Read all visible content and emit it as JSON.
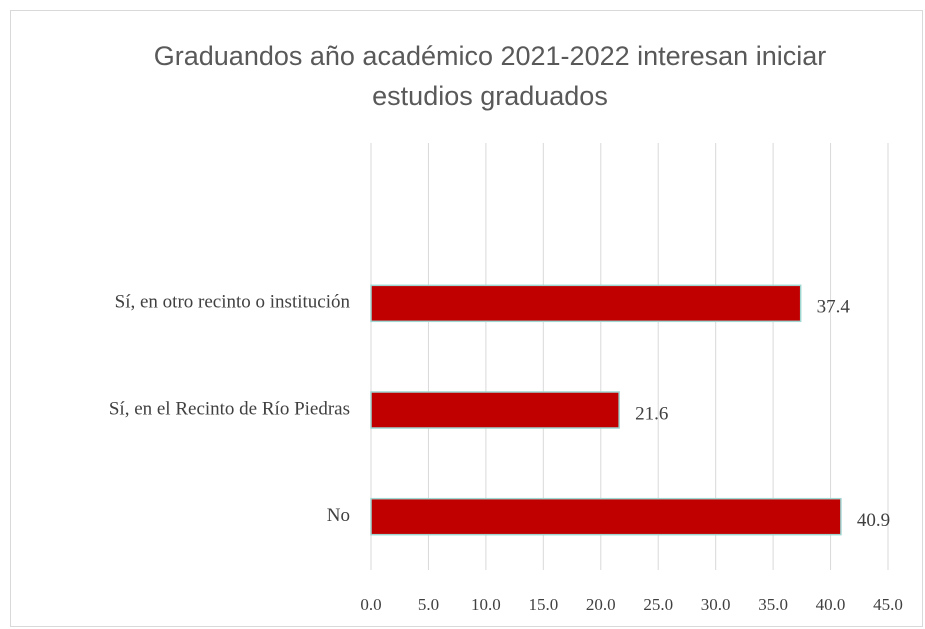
{
  "chart_data": {
    "type": "bar",
    "orientation": "horizontal",
    "title": "Graduandos año académico 2021-2022 interesan iniciar estudios graduados",
    "categories": [
      "Sí, en otro recinto o institución",
      "Sí, en el Recinto de Río Piedras",
      "No"
    ],
    "values": [
      37.4,
      21.6,
      40.9
    ],
    "color": "#c00000",
    "xlim": [
      0,
      45
    ],
    "xticks": [
      {
        "value": 0,
        "label": "0.0"
      },
      {
        "value": 5,
        "label": "5.0"
      },
      {
        "value": 10,
        "label": "10.0"
      },
      {
        "value": 15,
        "label": "15.0"
      },
      {
        "value": 20,
        "label": "20.0"
      },
      {
        "value": 25,
        "label": "25.0"
      },
      {
        "value": 30,
        "label": "30.0"
      },
      {
        "value": 35,
        "label": "35.0"
      },
      {
        "value": 40,
        "label": "40.0"
      },
      {
        "value": 45,
        "label": "45.0"
      }
    ],
    "grid": true
  }
}
